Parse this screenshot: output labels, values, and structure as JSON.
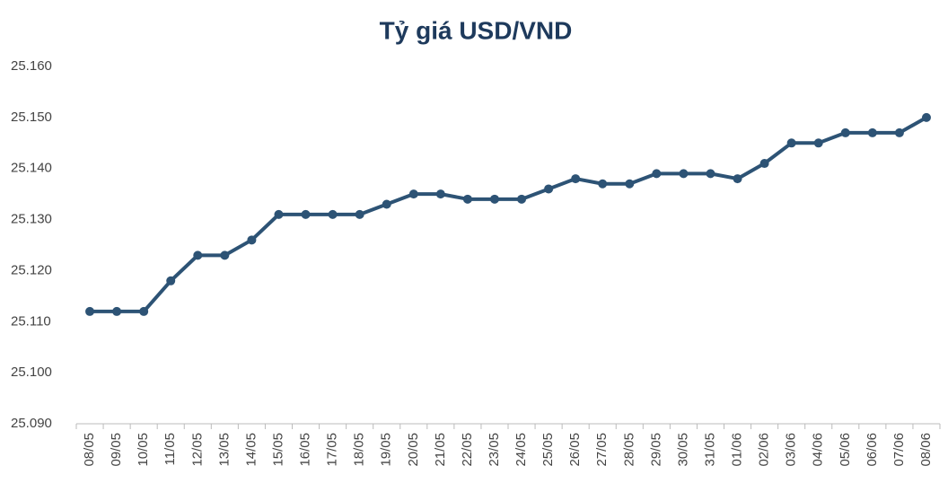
{
  "chart_data": {
    "type": "line",
    "title": "Tỷ giá USD/VND",
    "categories": [
      "08/05",
      "09/05",
      "10/05",
      "11/05",
      "12/05",
      "13/05",
      "14/05",
      "15/05",
      "16/05",
      "17/05",
      "18/05",
      "19/05",
      "20/05",
      "21/05",
      "22/05",
      "23/05",
      "24/05",
      "25/05",
      "26/05",
      "27/05",
      "28/05",
      "29/05",
      "30/05",
      "31/05",
      "01/06",
      "02/06",
      "03/06",
      "04/06",
      "05/06",
      "06/06",
      "07/06",
      "08/06"
    ],
    "values": [
      25112,
      25112,
      25112,
      25118,
      25123,
      25123,
      25126,
      25131,
      25131,
      25131,
      25131,
      25133,
      25135,
      25135,
      25134,
      25134,
      25134,
      25136,
      25138,
      25137,
      25137,
      25139,
      25139,
      25139,
      25138,
      25141,
      25145,
      25145,
      25147,
      25147,
      25147,
      25150
    ],
    "color": "#2d5375",
    "ylim": [
      25090,
      25160
    ],
    "yticks": [
      {
        "value": 25090,
        "label": "25.090"
      },
      {
        "value": 25100,
        "label": "25.100"
      },
      {
        "value": 25110,
        "label": "25.110"
      },
      {
        "value": 25120,
        "label": "25.120"
      },
      {
        "value": 25130,
        "label": "25.130"
      },
      {
        "value": 25140,
        "label": "25.140"
      },
      {
        "value": 25150,
        "label": "25.150"
      },
      {
        "value": 25160,
        "label": "25.160"
      }
    ],
    "grid": false
  }
}
